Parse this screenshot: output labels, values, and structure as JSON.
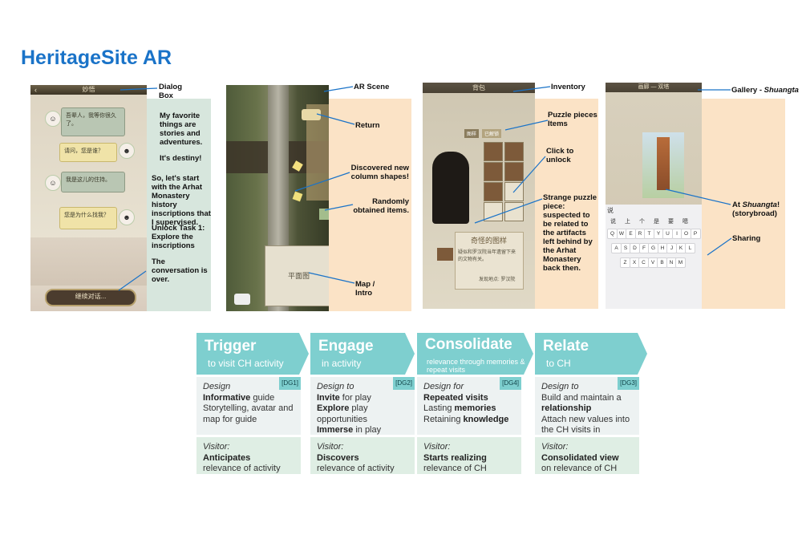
{
  "title": "HeritageSite AR",
  "phone1": {
    "header": "妙悟",
    "bubbles": [
      "吾辈人，我等你很久了。",
      "请问，您是谁？",
      "我是这儿的住持。",
      "您是为什么找我？"
    ],
    "continue_btn": "继续对话..."
  },
  "phone1_notes": [
    "My favorite things are stories and adventures.",
    "It's destiny!",
    "So, let's start with the Arhat Monastery history inscriptions that I supervised.",
    "Unlock Task 1: Explore the inscriptions",
    "The conversation is over."
  ],
  "phone2": {
    "map_label": "平面图"
  },
  "phone3": {
    "header": "背包",
    "tab1": "图样",
    "tab2": "已解锁",
    "item_title": "奇怪的图样",
    "item_desc": "疑似和罗汉院当年遗留下来的文物有关。",
    "found_at": "发现地点: 罗汉院"
  },
  "phone4": {
    "header": "画廊 — 双塔",
    "keyboard_rows": [
      [
        "Q",
        "W",
        "E",
        "R",
        "T",
        "Y",
        "U",
        "I",
        "O",
        "P"
      ],
      [
        "A",
        "S",
        "D",
        "F",
        "G",
        "H",
        "J",
        "K",
        "L"
      ],
      [
        "Z",
        "X",
        "C",
        "V",
        "B",
        "N",
        "M"
      ]
    ],
    "candidates": [
      "说",
      "上",
      "个",
      "是",
      "要",
      "嗯"
    ]
  },
  "callouts": {
    "dialog": "Dialog Box",
    "ar_scene": "AR Scene",
    "return": "Return",
    "discovered": "Discovered new column shapes!",
    "random": "Randomly obtained items.",
    "map": "Map / Intro",
    "inventory": "Inventory",
    "puzzle": "Puzzle pieces Items",
    "unlock": "Click to unlock",
    "strange": "Strange puzzle piece: suspected to be related to the artifacts left behind by the Arhat Monastery back then.",
    "gallery_prefix": "Gallery - ",
    "gallery_name": "Shuangta",
    "at_prefix": "At ",
    "at_name": "Shuangta",
    "at_suffix": "! (storybroad)",
    "sharing": "Sharing"
  },
  "framework": [
    {
      "header": "Trigger",
      "sub": "to visit CH activity",
      "design_label": "Design",
      "tag": "[DG1]",
      "design_lines": [
        [
          "Informative",
          " guide"
        ],
        [
          "",
          "Storytelling, avatar and map for guide"
        ]
      ],
      "visitor_label": "Visitor:",
      "visitor_bold": "Anticipates",
      "visitor_rest": "relevance of activity"
    },
    {
      "header": "Engage",
      "sub": "in activity",
      "design_label": "Design to",
      "tag": "[DG2]",
      "design_lines": [
        [
          "Invite",
          " for play"
        ],
        [
          "Explore",
          " play opportunities"
        ],
        [
          "Immerse",
          " in play"
        ]
      ],
      "visitor_label": "Visitor:",
      "visitor_bold": "Discovers",
      "visitor_rest": "relevance of activity"
    },
    {
      "header": "Consolidate",
      "sub": "relevance through memories & repeat visits",
      "design_label": "Design for",
      "tag": "[DG4]",
      "design_lines": [
        [
          "Repeated visits",
          ""
        ],
        [
          "Lasting ",
          "memories"
        ],
        [
          "Retaining ",
          "knowledge"
        ]
      ],
      "visitor_label": "Visitor:",
      "visitor_bold": "Starts realizing",
      "visitor_rest": "relevance of CH"
    },
    {
      "header": "Relate",
      "sub": "to CH",
      "design_label": "Design to",
      "tag": "[DG3]",
      "design_lines": [
        [
          "",
          "Build and maintain a"
        ],
        [
          "relationship",
          ""
        ],
        [
          "Attach new ",
          "values into the CH visits in creation"
        ]
      ],
      "visitor_label": "Visitor:",
      "visitor_bold": "Consolidated view",
      "visitor_rest": "on relevance of CH"
    }
  ]
}
